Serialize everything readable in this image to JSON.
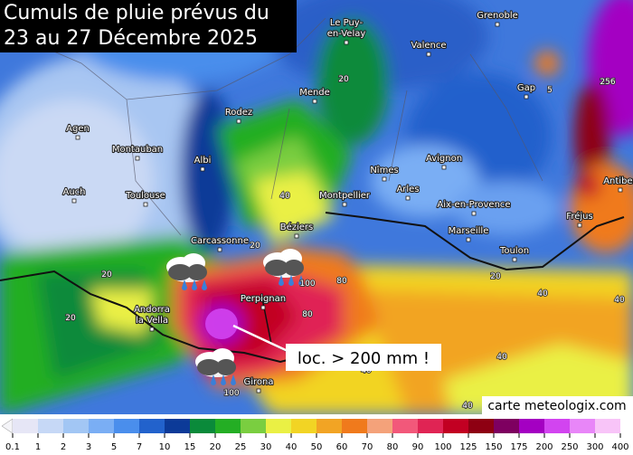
{
  "title_lines": [
    "Cumuls de pluie prévus du",
    "23 au 27 Décembre 2025"
  ],
  "cities": [
    [
      "Grenoble"
    ],
    [
      "Le Puy-",
      "en-Velay"
    ],
    [
      "Valence"
    ],
    [
      "Gap"
    ],
    [
      "Mende"
    ],
    [
      "Rodez"
    ],
    [
      "Agen"
    ],
    [
      "Montauban"
    ],
    [
      "Albi"
    ],
    [
      "Nîmes"
    ],
    [
      "Avignon"
    ],
    [
      "Auch"
    ],
    [
      "Toulouse"
    ],
    [
      "Montpellier"
    ],
    [
      "Arles"
    ],
    [
      "Aix-en-Provence"
    ],
    [
      "Marseille"
    ],
    [
      "Toulon"
    ],
    [
      "Fréjus"
    ],
    [
      "Antibes"
    ],
    [
      "Béziers"
    ],
    [
      "Carcassonne"
    ],
    [
      "Perpignan"
    ],
    [
      "Andorra",
      "la Vella"
    ],
    [
      "Girona"
    ],
    [
      "Mo"
    ]
  ],
  "map_labels": [
    20,
    5,
    256,
    40,
    20,
    20,
    20,
    100,
    80,
    80,
    40,
    40,
    40,
    40,
    100,
    20,
    40
  ],
  "annotation": "loc. > 200 mm !",
  "credit": "carte meteologix.com",
  "legend": {
    "ticks": [
      0.1,
      1,
      2,
      3,
      5,
      7,
      10,
      15,
      20,
      25,
      30,
      40,
      50,
      60,
      70,
      80,
      90,
      100,
      125,
      150,
      175,
      200,
      250,
      300,
      400
    ],
    "colors": [
      "#e6e6f6",
      "#c6d8f6",
      "#a2c6f4",
      "#7aaef4",
      "#4a8eec",
      "#2262cc",
      "#0c3a98",
      "#0a8a3a",
      "#24ae24",
      "#7ace40",
      "#eaf044",
      "#f2d424",
      "#f2a424",
      "#f07a1c",
      "#f4a27a",
      "#f2587a",
      "#e02454",
      "#c20022",
      "#8e0012",
      "#7e0060",
      "#a400c2",
      "#d244f0",
      "#e886f8",
      "#f8c4f8"
    ]
  }
}
